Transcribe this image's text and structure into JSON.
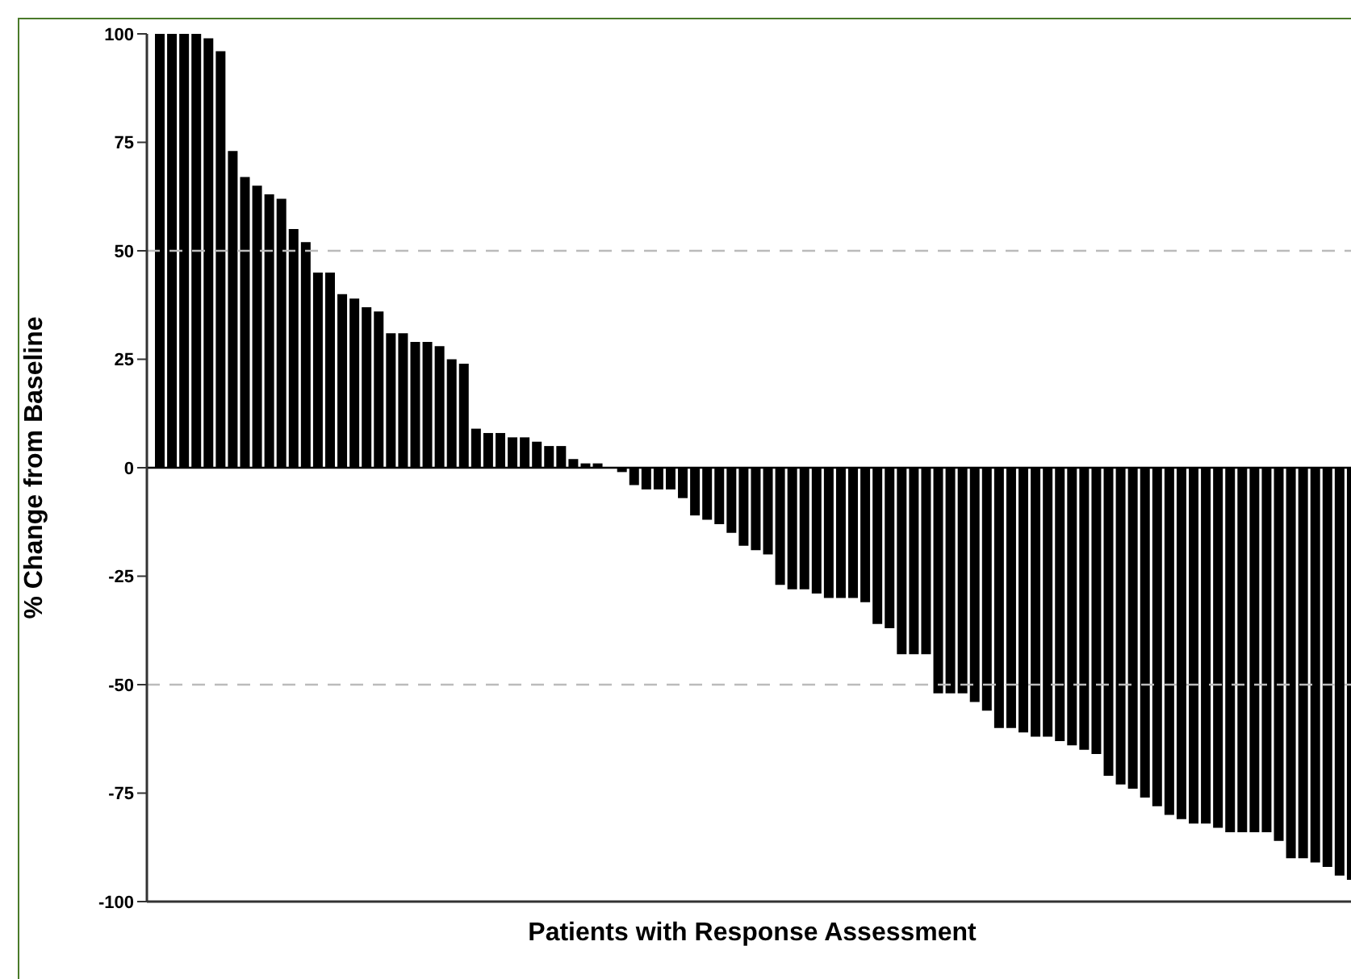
{
  "chart_data": {
    "type": "bar",
    "xlabel": "Patients with Response Assessment",
    "ylabel": "% Change from Baseline",
    "categories": [
      null,
      null,
      null,
      null,
      null,
      null,
      null,
      null,
      null,
      null,
      null,
      null,
      null,
      null,
      null,
      null,
      null,
      null,
      null,
      null,
      null,
      null,
      null,
      null,
      null,
      null,
      null,
      null,
      null,
      null,
      null,
      null,
      null,
      null,
      null,
      null,
      null,
      null,
      null,
      null,
      null,
      null,
      null,
      null,
      null,
      null,
      null,
      null,
      null,
      null,
      null,
      null,
      null,
      null,
      null,
      null,
      null,
      null,
      null,
      null,
      null,
      null,
      null,
      null,
      null,
      null,
      null,
      null,
      null,
      null,
      null,
      null,
      null,
      null,
      null,
      null,
      null,
      null,
      null,
      null,
      null,
      null,
      null,
      null,
      null,
      null,
      null,
      null,
      null,
      null,
      null,
      null,
      null,
      null,
      null,
      null,
      null,
      null,
      null
    ],
    "series": [
      {
        "color": "#000000",
        "values": [
          100,
          100,
          100,
          100,
          99,
          96,
          73,
          67,
          65,
          63,
          62,
          55,
          52,
          45,
          45,
          40,
          39,
          37,
          36,
          31,
          31,
          29,
          29,
          28,
          25,
          24,
          9,
          8,
          8,
          7,
          7,
          6,
          5,
          5,
          2,
          1,
          1,
          null,
          -1,
          -4,
          -5,
          -5,
          -5,
          -7,
          -11,
          -12,
          -13,
          -15,
          -18,
          -19,
          -20,
          -27,
          -28,
          -28,
          -29,
          -30,
          -30,
          -30,
          -31,
          -36,
          -37,
          -43,
          -43,
          -43,
          -52,
          -52,
          -52,
          -54,
          -56,
          -60,
          -60,
          -61,
          -62,
          -62,
          -63,
          -64,
          -65,
          -66,
          -71,
          -73,
          -74,
          -76,
          -78,
          -80,
          -81,
          -82,
          -82,
          -83,
          -84,
          -84,
          -84,
          -84,
          -86,
          -90,
          -90,
          -91,
          -92,
          -94,
          -95
        ]
      }
    ],
    "ylim": [
      -100,
      100
    ],
    "yticks": [
      -100,
      -75,
      -50,
      -25,
      0,
      25,
      50,
      75,
      100
    ],
    "ref_lines": [
      {
        "axis": "y",
        "value": 50,
        "color": "#bbbbbb",
        "line_style": "dashed"
      },
      {
        "axis": "y",
        "value": -50,
        "color": "#bbbbbb",
        "line_style": "dashed"
      },
      {
        "axis": "y",
        "value": 0,
        "color": "#000000",
        "line_style": "solid"
      }
    ]
  }
}
